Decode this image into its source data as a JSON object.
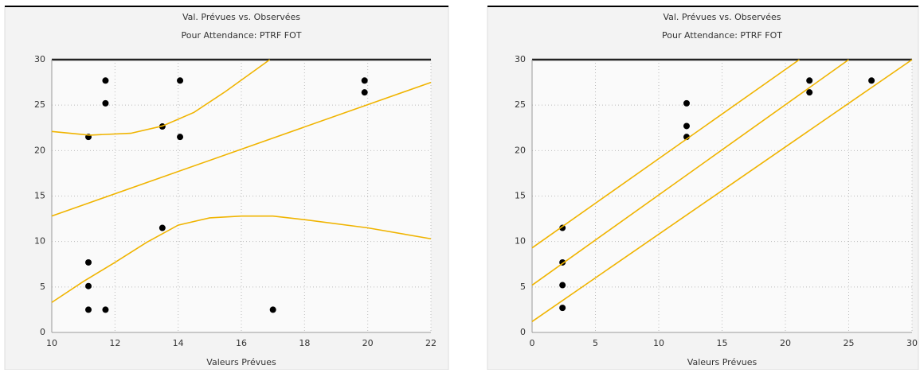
{
  "chart_data": [
    {
      "type": "scatter",
      "title": "Val. Prévues vs. Observées",
      "subtitle": "Pour Attendance: PTRF FOT",
      "x_label": "Valeurs Prévues",
      "xlim": [
        10,
        22
      ],
      "xticks": [
        10,
        12,
        14,
        16,
        18,
        20,
        22
      ],
      "ylim": [
        0,
        30
      ],
      "yticks": [
        0,
        5,
        10,
        15,
        20,
        25,
        30
      ],
      "grid": true,
      "series": [
        {
          "type": "scatter",
          "color": "#000000",
          "x": [
            11.16,
            11.7,
            11.7,
            11.16,
            11.16,
            11.16,
            11.7,
            13.5,
            13.5,
            14.06,
            14.06,
            17.0,
            19.9,
            19.9
          ],
          "values": [
            21.5,
            27.7,
            25.2,
            7.7,
            5.1,
            2.5,
            2.5,
            22.65,
            11.5,
            27.7,
            21.5,
            2.5,
            27.7,
            26.4
          ]
        },
        {
          "type": "line",
          "color": "#f0b400",
          "x": [
            10,
            22
          ],
          "values": [
            12.8,
            27.5
          ]
        },
        {
          "type": "line",
          "color": "#f0b400",
          "x": [
            10,
            11.2,
            12.5,
            13.5,
            14.5,
            15.5,
            16.9
          ],
          "values": [
            22.1,
            21.7,
            21.9,
            22.7,
            24.2,
            26.5,
            30
          ]
        },
        {
          "type": "line",
          "color": "#f0b400",
          "x": [
            10,
            11,
            12,
            13,
            14,
            15,
            16,
            17,
            18,
            20,
            22
          ],
          "values": [
            3.3,
            5.6,
            7.7,
            9.9,
            11.8,
            12.6,
            12.8,
            12.8,
            12.4,
            11.5,
            10.3
          ]
        }
      ]
    },
    {
      "type": "scatter",
      "title": "Val. Prévues vs. Observées",
      "subtitle": "Pour Attendance: PTRF FOT",
      "x_label": "Valeurs Prévues",
      "xlim": [
        0,
        30
      ],
      "xticks": [
        0,
        5,
        10,
        15,
        20,
        25,
        30
      ],
      "ylim": [
        0,
        30
      ],
      "yticks": [
        0,
        5,
        10,
        15,
        20,
        25,
        30
      ],
      "grid": true,
      "series": [
        {
          "type": "scatter",
          "color": "#000000",
          "x": [
            2.4,
            2.4,
            2.4,
            2.4,
            12.2,
            12.2,
            12.2,
            21.9,
            21.9,
            26.8
          ],
          "values": [
            11.5,
            7.7,
            5.2,
            2.7,
            25.2,
            22.7,
            21.5,
            27.7,
            26.4,
            27.7
          ]
        },
        {
          "type": "line",
          "color": "#f0b400",
          "x": [
            0,
            25
          ],
          "values": [
            5.2,
            30
          ]
        },
        {
          "type": "line",
          "color": "#f0b400",
          "x": [
            0,
            21.1
          ],
          "values": [
            9.3,
            30
          ]
        },
        {
          "type": "line",
          "color": "#f0b400",
          "x": [
            0,
            30
          ],
          "values": [
            1.2,
            30
          ]
        }
      ]
    }
  ]
}
